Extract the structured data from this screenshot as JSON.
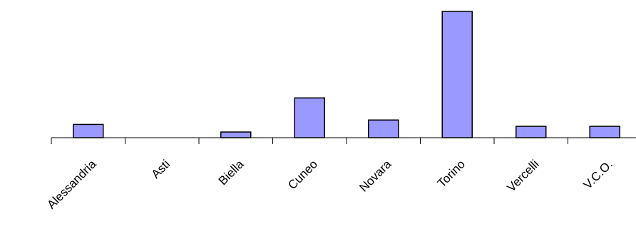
{
  "chart_data": {
    "type": "bar",
    "title": "",
    "xlabel": "",
    "ylabel": "",
    "categories": [
      "Alessandria",
      "Asti",
      "Biella",
      "Cuneo",
      "Novara",
      "Torino",
      "Vercelli",
      "V.C.O."
    ],
    "values": [
      10.5,
      0,
      4.5,
      31.5,
      14,
      100,
      9,
      9
    ],
    "ylim": [
      0,
      100
    ],
    "grid": false,
    "legend": "none",
    "colors": {
      "bar_fill": "#9999ff",
      "bar_stroke": "#000000",
      "axis": "#000000"
    }
  }
}
